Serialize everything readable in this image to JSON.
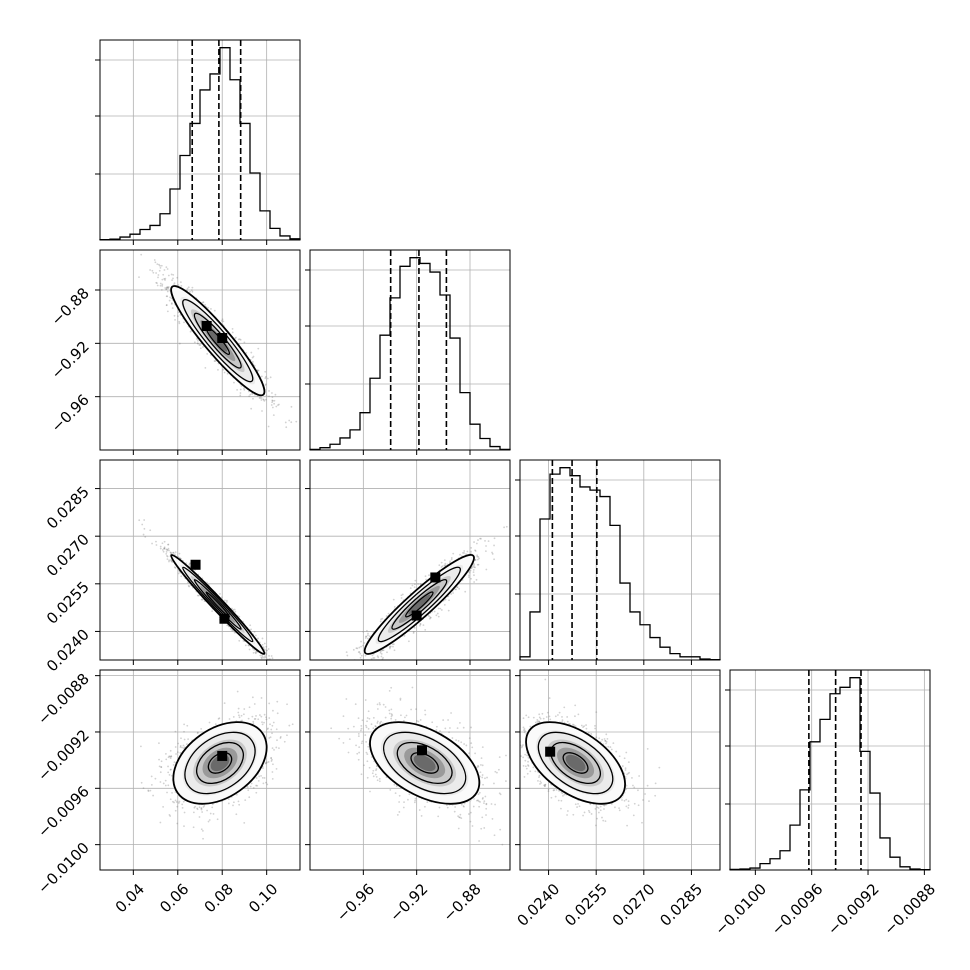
{
  "chart_data": {
    "type": "corner",
    "grid": true,
    "colors": {
      "line": "#000000",
      "grid": "#b0b0b0",
      "density": "#000000",
      "points": "#7f7f7f"
    },
    "parameters": [
      {
        "range": [
          0.025,
          0.115
        ],
        "ticks": [
          0.04,
          0.06,
          0.08,
          0.1
        ],
        "tick_labels": [
          "0.04",
          "0.06",
          "0.08",
          "0.10"
        ],
        "quantiles": [
          0.0665,
          0.0785,
          0.0883
        ]
      },
      {
        "range": [
          -1.0,
          -0.85
        ],
        "ticks": [
          -0.96,
          -0.92,
          -0.88
        ],
        "tick_labels": [
          "−0.96",
          "−0.92",
          "−0.88"
        ],
        "quantiles": [
          -0.9395,
          -0.9183,
          -0.8977
        ]
      },
      {
        "range": [
          0.0231,
          0.0294
        ],
        "ticks": [
          0.024,
          0.0255,
          0.027,
          0.0285
        ],
        "tick_labels": [
          "0.0240",
          "0.0255",
          "0.0270",
          "0.0285"
        ],
        "quantiles": [
          0.02412,
          0.02474,
          0.02552
        ]
      },
      {
        "range": [
          -0.01018,
          -0.00876
        ],
        "ticks": [
          -0.01,
          -0.0096,
          -0.0092,
          -0.0088
        ],
        "tick_labels": [
          "−0.0100",
          "−0.0096",
          "−0.0092",
          "−0.0088"
        ],
        "quantiles": [
          -0.00962,
          -0.00943,
          -0.00925
        ]
      }
    ],
    "histograms": [
      {
        "param": 0,
        "edges": [
          0.025,
          0.0295,
          0.034,
          0.0385,
          0.043,
          0.0475,
          0.052,
          0.0565,
          0.061,
          0.0655,
          0.07,
          0.0745,
          0.079,
          0.0835,
          0.088,
          0.0925,
          0.097,
          0.1015,
          0.106,
          0.1105,
          0.115
        ],
        "counts": [
          1,
          3,
          10,
          20,
          36,
          50,
          90,
          175,
          290,
          400,
          515,
          570,
          660,
          550,
          400,
          230,
          100,
          40,
          14,
          4
        ]
      },
      {
        "param": 1,
        "edges": [
          -1.0,
          -0.9925,
          -0.985,
          -0.9775,
          -0.97,
          -0.9625,
          -0.955,
          -0.9475,
          -0.94,
          -0.9325,
          -0.925,
          -0.9175,
          -0.91,
          -0.9025,
          -0.895,
          -0.8875,
          -0.88,
          -0.8725,
          -0.865,
          -0.8575,
          -0.85
        ],
        "counts": [
          2,
          8,
          20,
          42,
          70,
          130,
          250,
          400,
          530,
          640,
          670,
          650,
          620,
          540,
          390,
          200,
          90,
          40,
          12,
          2
        ]
      },
      {
        "param": 2,
        "edges": [
          0.0231,
          0.023415,
          0.02373,
          0.024045,
          0.02436,
          0.024675,
          0.02499,
          0.025305,
          0.02562,
          0.025935,
          0.02625,
          0.026565,
          0.02688,
          0.027195,
          0.02751,
          0.027825,
          0.02814,
          0.028455,
          0.02877,
          0.029085,
          0.0294
        ],
        "counts": [
          10,
          150,
          440,
          580,
          600,
          575,
          540,
          530,
          510,
          420,
          240,
          150,
          110,
          70,
          40,
          20,
          10,
          10,
          3,
          1
        ]
      },
      {
        "param": 3,
        "edges": [
          -0.01018,
          -0.010109,
          -0.010038,
          -0.009967,
          -0.009896,
          -0.009825,
          -0.009754,
          -0.009683,
          -0.009612,
          -0.009541,
          -0.00947,
          -0.009399,
          -0.009328,
          -0.009257,
          -0.009186,
          -0.009115,
          -0.009044,
          -0.008973,
          -0.008902,
          -0.008831,
          -0.00876
        ],
        "counts": [
          2,
          3,
          6,
          20,
          35,
          60,
          140,
          250,
          400,
          470,
          550,
          570,
          600,
          370,
          240,
          100,
          40,
          10,
          3,
          1
        ]
      }
    ],
    "pairs": [
      {
        "x": 0,
        "y": 1,
        "mean": [
          0.078,
          -0.918
        ],
        "sd": [
          0.0105,
          0.0205
        ],
        "corr": -0.93,
        "peaks": [
          [
            0.073,
            -0.907
          ],
          [
            0.08,
            -0.916
          ]
        ]
      },
      {
        "x": 0,
        "y": 2,
        "mean": [
          0.078,
          0.02485
        ],
        "sd": [
          0.0105,
          0.00078
        ],
        "corr": -0.985,
        "peaks": [
          [
            0.068,
            0.0261
          ],
          [
            0.081,
            0.0244
          ]
        ]
      },
      {
        "x": 1,
        "y": 2,
        "mean": [
          -0.918,
          0.02485
        ],
        "sd": [
          0.0205,
          0.00078
        ],
        "corr": 0.94,
        "peaks": [
          [
            -0.906,
            0.0257
          ],
          [
            -0.92,
            0.0245
          ]
        ]
      },
      {
        "x": 0,
        "y": 3,
        "mean": [
          0.079,
          -0.00942
        ],
        "sd": [
          0.0105,
          0.000145
        ],
        "corr": 0.38,
        "peaks": [
          [
            0.08,
            -0.00937
          ]
        ]
      },
      {
        "x": 1,
        "y": 3,
        "mean": [
          -0.914,
          -0.00942
        ],
        "sd": [
          0.0205,
          0.000145
        ],
        "corr": -0.48,
        "peaks": [
          [
            -0.916,
            -0.00933
          ]
        ]
      },
      {
        "x": 2,
        "y": 3,
        "mean": [
          0.02485,
          -0.00942
        ],
        "sd": [
          0.00078,
          0.000145
        ],
        "corr": -0.52,
        "peaks": [
          [
            0.02405,
            -0.00934
          ]
        ]
      }
    ]
  }
}
